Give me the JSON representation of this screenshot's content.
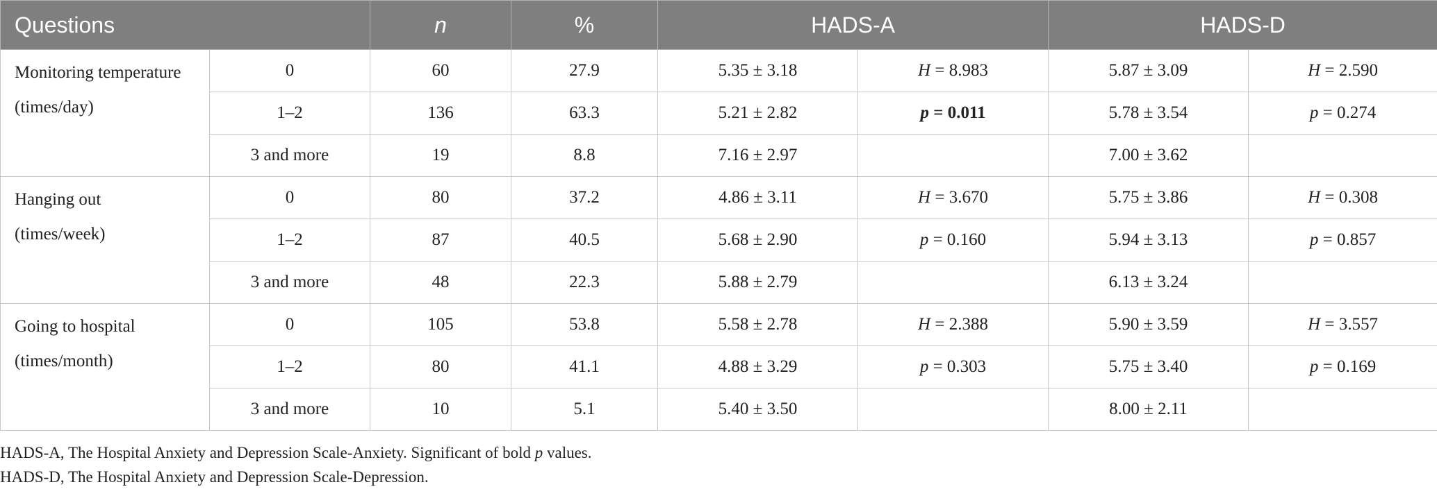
{
  "table": {
    "header": [
      "Questions",
      "n",
      "%",
      "HADS-A",
      "HADS-D"
    ],
    "groups": [
      {
        "label": "Monitoring temperature (times/day)",
        "rows": [
          {
            "category": "0",
            "n": 60,
            "percent": 27.9,
            "hads_a": "5.35 ± 3.18",
            "hads_a_stat": {
              "text": "H = 8.983",
              "bold": false
            },
            "hads_d": "5.87 ± 3.09",
            "hads_d_stat": {
              "text": "H = 2.590",
              "bold": false
            }
          },
          {
            "category": "1–2",
            "n": 136,
            "percent": 63.3,
            "hads_a": "5.21 ± 2.82",
            "hads_a_stat": {
              "text": "p = 0.011",
              "bold": true
            },
            "hads_d": "5.78 ± 3.54",
            "hads_d_stat": {
              "text": "p = 0.274",
              "bold": false
            }
          },
          {
            "category": "3 and more",
            "n": 19,
            "percent": 8.8,
            "hads_a": "7.16 ± 2.97",
            "hads_a_stat": null,
            "hads_d": "7.00 ± 3.62",
            "hads_d_stat": null
          }
        ]
      },
      {
        "label": "Hanging out (times/week)",
        "rows": [
          {
            "category": "0",
            "n": 80,
            "percent": 37.2,
            "hads_a": "4.86 ± 3.11",
            "hads_a_stat": {
              "text": "H = 3.670",
              "bold": false
            },
            "hads_d": "5.75 ± 3.86",
            "hads_d_stat": {
              "text": "H = 0.308",
              "bold": false
            }
          },
          {
            "category": "1–2",
            "n": 87,
            "percent": 40.5,
            "hads_a": "5.68 ± 2.90",
            "hads_a_stat": {
              "text": "p = 0.160",
              "bold": false
            },
            "hads_d": "5.94 ± 3.13",
            "hads_d_stat": {
              "text": "p = 0.857",
              "bold": false
            }
          },
          {
            "category": "3 and more",
            "n": 48,
            "percent": 22.3,
            "hads_a": "5.88 ± 2.79",
            "hads_a_stat": null,
            "hads_d": "6.13 ± 3.24",
            "hads_d_stat": null
          }
        ]
      },
      {
        "label": "Going to hospital (times/month)",
        "rows": [
          {
            "category": "0",
            "n": 105,
            "percent": 53.8,
            "hads_a": "5.58 ± 2.78",
            "hads_a_stat": {
              "text": "H = 2.388",
              "bold": false
            },
            "hads_d": "5.90 ± 3.59",
            "hads_d_stat": {
              "text": "H = 3.557",
              "bold": false
            }
          },
          {
            "category": "1–2",
            "n": 80,
            "percent": 41.1,
            "hads_a": "4.88 ± 3.29",
            "hads_a_stat": {
              "text": "p = 0.303",
              "bold": false
            },
            "hads_d": "5.75 ± 3.40",
            "hads_d_stat": {
              "text": "p = 0.169",
              "bold": false
            }
          },
          {
            "category": "3 and more",
            "n": 10,
            "percent": 5.1,
            "hads_a": "5.40 ± 3.50",
            "hads_a_stat": null,
            "hads_d": "8.00 ± 2.11",
            "hads_d_stat": null
          }
        ]
      }
    ],
    "notes": [
      "HADS-A, The Hospital Anxiety and Depression Scale-Anxiety. Significant of bold p values.",
      "HADS-D, The Hospital Anxiety and Depression Scale-Depression."
    ]
  }
}
